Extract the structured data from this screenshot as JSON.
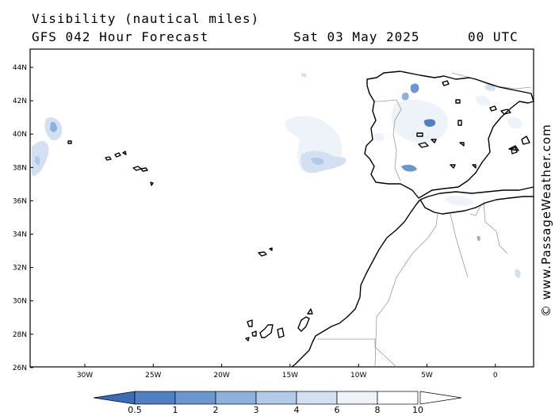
{
  "header": {
    "title": "Visibility (nautical miles)",
    "forecast": "GFS 042 Hour Forecast",
    "date": "Sat 03 May 2025",
    "time": "00 UTC"
  },
  "map": {
    "lat_labels": [
      "44N",
      "42N",
      "40N",
      "38N",
      "36N",
      "34N",
      "32N",
      "30N",
      "28N",
      "26N"
    ],
    "lon_labels": [
      "30W",
      "25W",
      "20W",
      "15W",
      "10W",
      "5W",
      "0"
    ]
  },
  "colorbar": {
    "labels": [
      "0.5",
      "1",
      "2",
      "3",
      "4",
      "6",
      "8",
      "10"
    ],
    "colors": [
      "#3a6db5",
      "#4f80c4",
      "#6b97d1",
      "#8eb0dd",
      "#b2c9e8",
      "#d3e0f2",
      "#eef3fa",
      "#ffffff"
    ]
  },
  "credit": "© www.PassageWeather.com"
}
